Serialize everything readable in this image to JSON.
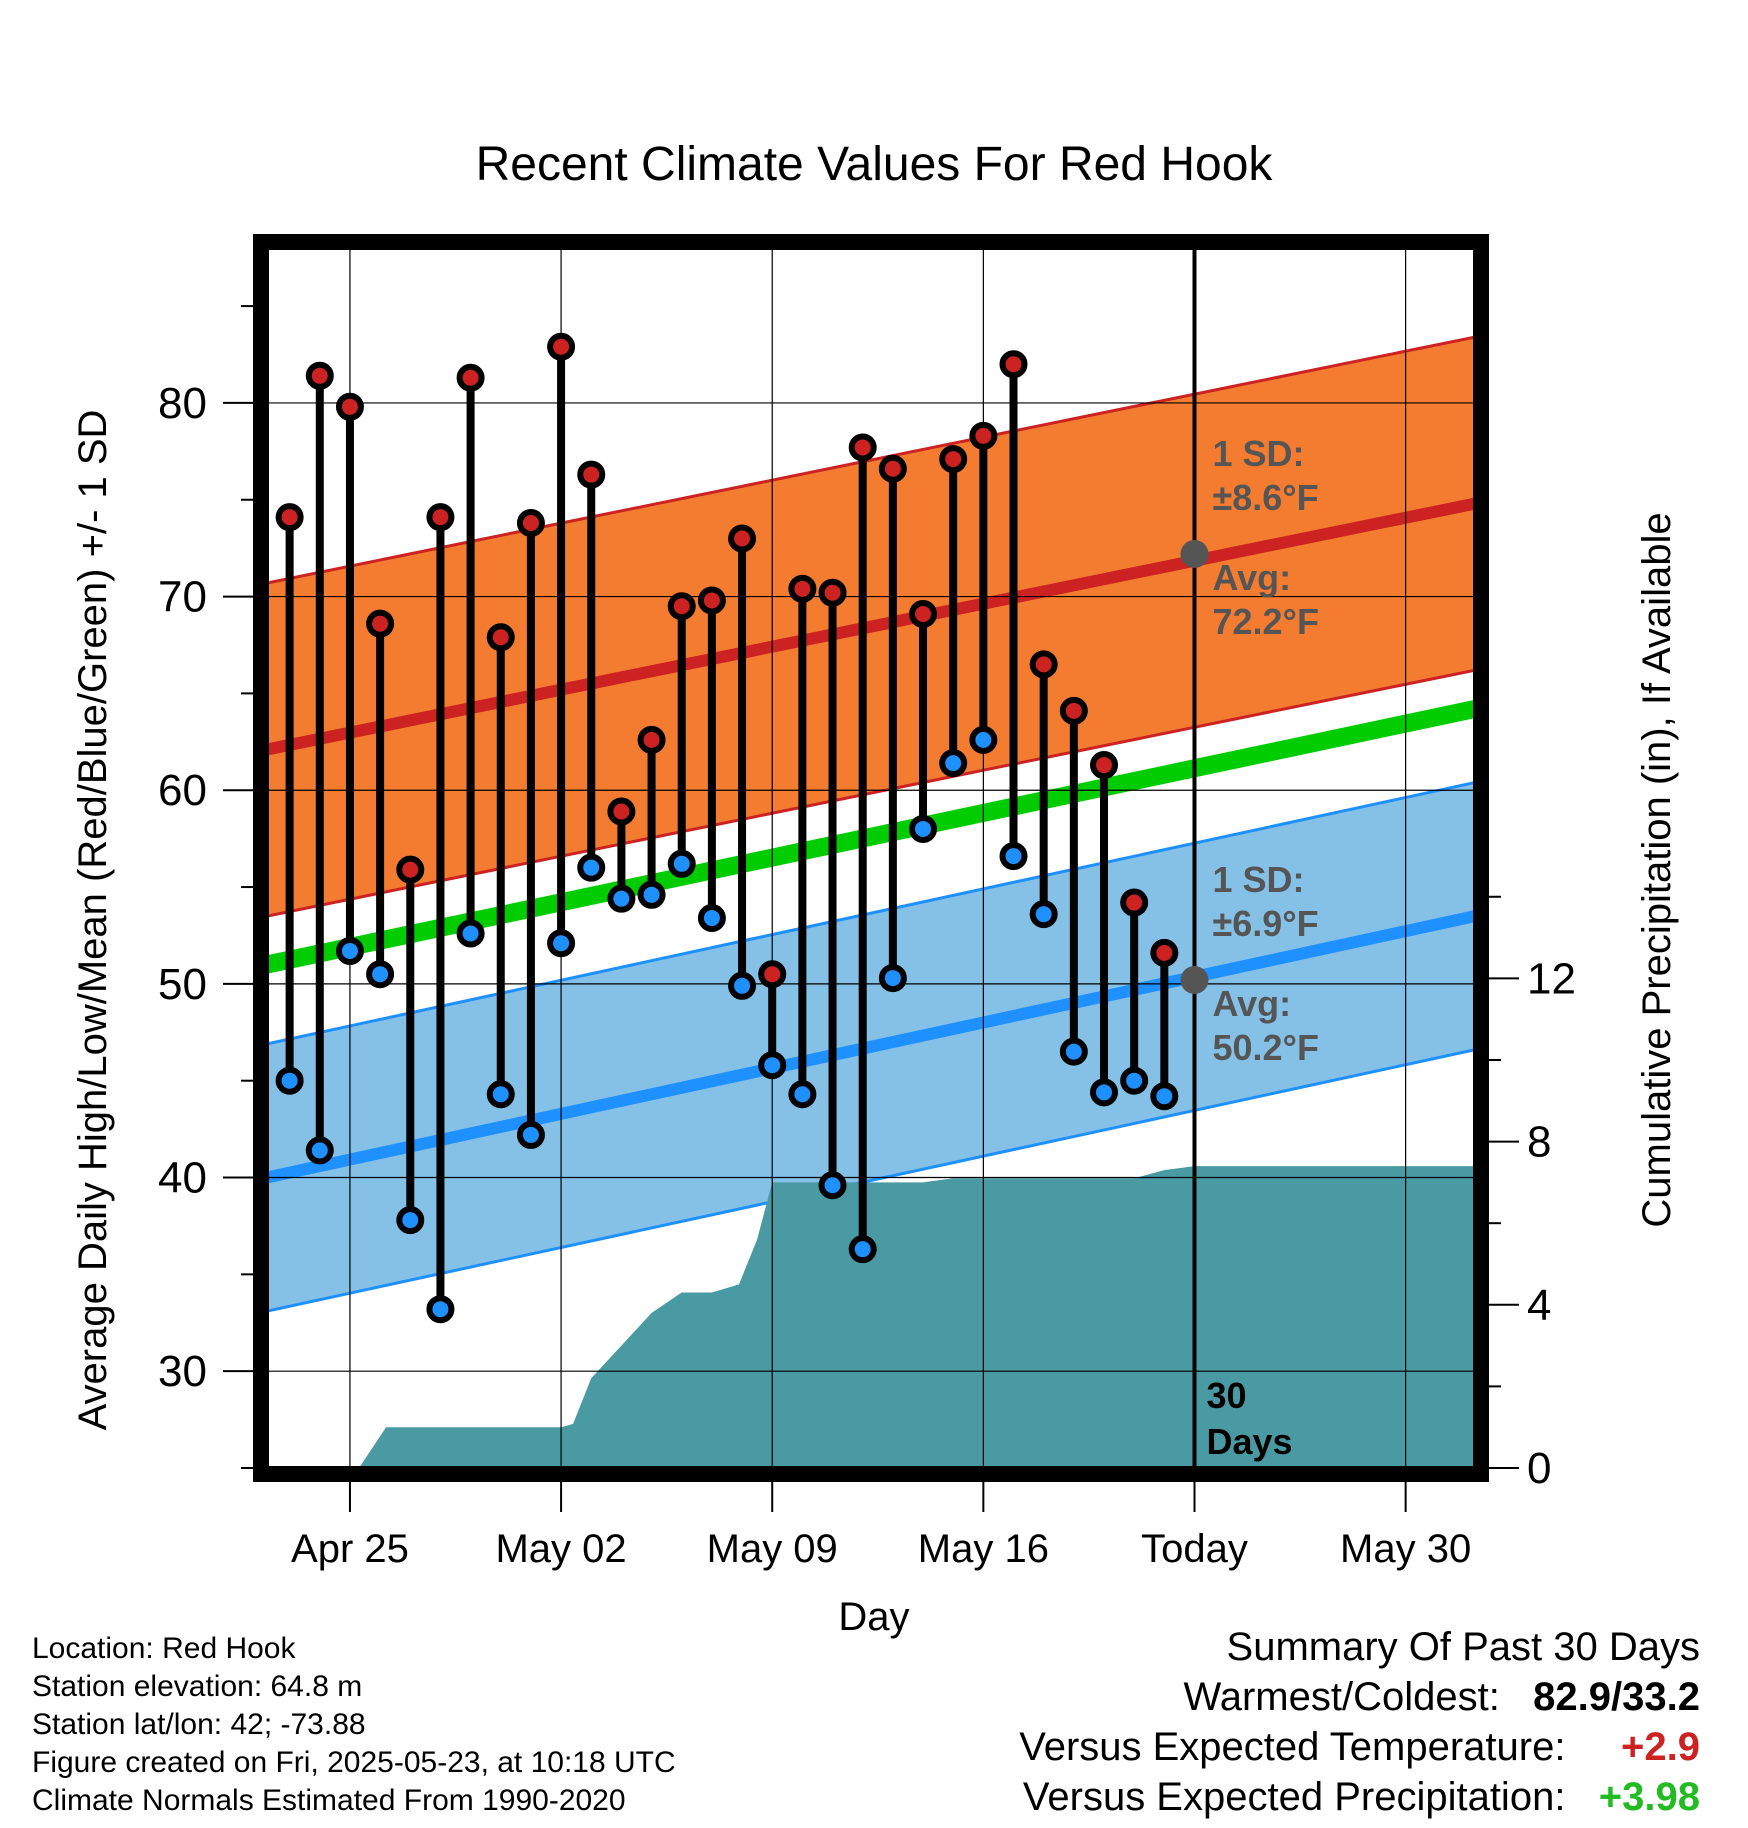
{
  "chart_data": {
    "type": "line",
    "title": "Recent Climate Values For Red Hook",
    "xlabel": "Day",
    "ylabel": "Average Daily High/Low/Mean (Red/Blue/Green) +/- 1 SD",
    "y2label": "Cumulative Precipitation (in), If Available",
    "ylim": [
      25,
      88
    ],
    "y2lim": [
      0,
      29.9
    ],
    "yticks": [
      30,
      40,
      50,
      60,
      70,
      80
    ],
    "y2ticks": [
      0,
      4,
      8,
      12
    ],
    "grid": true,
    "xticks": [
      {
        "day": 3,
        "label": "Apr 25"
      },
      {
        "day": 10,
        "label": "May 02"
      },
      {
        "day": 17,
        "label": "May 09"
      },
      {
        "day": 24,
        "label": "May 16"
      },
      {
        "day": 31,
        "label": "Today"
      },
      {
        "day": 38,
        "label": "May 30"
      }
    ],
    "xlim": [
      0.25,
      40.3
    ],
    "today_day": 31,
    "window_label_line1": "30",
    "window_label_line2": "Days",
    "highs": [
      74.1,
      81.4,
      79.8,
      68.6,
      55.9,
      74.1,
      81.3,
      67.9,
      73.8,
      82.9,
      76.3,
      58.9,
      62.6,
      69.5,
      69.8,
      73.0,
      50.5,
      70.4,
      70.2,
      77.7,
      76.6,
      69.1,
      77.1,
      78.3,
      82.0,
      66.5,
      64.1,
      61.3,
      54.2,
      51.6
    ],
    "lows": [
      45.0,
      41.4,
      51.7,
      50.5,
      37.8,
      33.2,
      52.6,
      44.3,
      42.2,
      52.1,
      56.0,
      54.4,
      54.6,
      56.2,
      53.4,
      49.9,
      45.8,
      44.3,
      39.6,
      36.3,
      50.3,
      58.0,
      61.4,
      62.6,
      56.6,
      53.6,
      46.5,
      44.4,
      45.0,
      44.2
    ],
    "high_normal": {
      "start": 62.1,
      "end": 74.8,
      "sd": 8.6
    },
    "low_normal": {
      "start": 40.0,
      "end": 53.5,
      "sd": 6.9
    },
    "mean_normal": {
      "start": 51.0,
      "end": 64.2
    },
    "precip_cumulative": [
      [
        3.3,
        0.0
      ],
      [
        4.2,
        1.0
      ],
      [
        10.0,
        1.0
      ],
      [
        10.4,
        1.08
      ],
      [
        11.0,
        2.2
      ],
      [
        12.0,
        3.0
      ],
      [
        13.0,
        3.8
      ],
      [
        14.0,
        4.3
      ],
      [
        15.0,
        4.3
      ],
      [
        15.9,
        4.5
      ],
      [
        16.5,
        5.6
      ],
      [
        17.0,
        7.0
      ],
      [
        20.0,
        7.0
      ],
      [
        22.0,
        7.0
      ],
      [
        23.0,
        7.1
      ],
      [
        29.0,
        7.1
      ],
      [
        30.0,
        7.3
      ],
      [
        31.0,
        7.4
      ],
      [
        40.3,
        7.4
      ]
    ],
    "annotations": {
      "high_sd_label": "1 SD:",
      "high_sd_value": "±8.6°F",
      "high_avg_label": "Avg:",
      "high_avg_value": "72.2°F",
      "low_sd_label": "1 SD:",
      "low_sd_value": "±6.9°F",
      "low_avg_label": "Avg:",
      "low_avg_value": "50.2°F",
      "high_avg": 72.2,
      "low_avg": 50.2
    },
    "colors": {
      "high_band": "#f47c30",
      "high_line": "#cc2222",
      "low_band": "#85c1e6",
      "low_line": "#1e90ff",
      "mean_line": "#00cc00",
      "precip": "#4a9aa4",
      "high_dot": "#cc2222",
      "low_dot": "#1e90ff",
      "annotation": "#555555"
    }
  },
  "info": {
    "location": "Location: Red Hook",
    "elevation": "Station elevation: 64.8 m",
    "latlon": "Station lat/lon: 42; -73.88",
    "created": "Figure created on Fri, 2025-05-23, at 10:18 UTC",
    "normals": "Climate Normals Estimated From 1990-2020"
  },
  "summary": {
    "title": "Summary Of Past 30 Days",
    "warmest_label": "Warmest/Coldest:",
    "warmest_value": "82.9/33.2",
    "temp_label": "Versus Expected Temperature:",
    "temp_value": "+2.9",
    "temp_color": "#cc2222",
    "precip_label": "Versus Expected Precipitation:",
    "precip_value": "+3.98",
    "precip_color": "#22bb22"
  }
}
